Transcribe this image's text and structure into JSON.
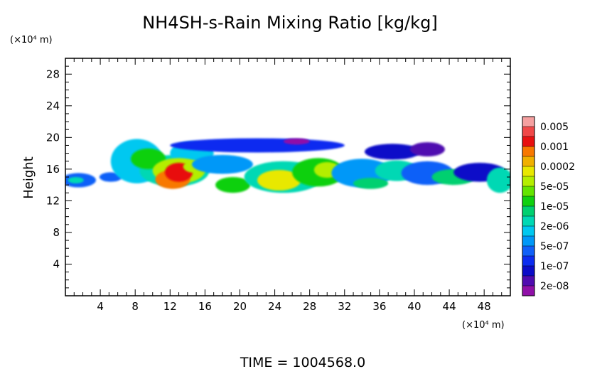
{
  "chart_data": {
    "type": "heatmap",
    "title": "NH4SH-s-Rain Mixing Ratio [kg/kg]",
    "ylabel": "Height",
    "xlabel": "",
    "x_unit": "(×10⁴ m)",
    "y_unit": "(×10⁴ m)",
    "xlim": [
      0,
      51
    ],
    "ylim": [
      0,
      30
    ],
    "x_ticks": [
      4,
      8,
      12,
      16,
      20,
      24,
      28,
      32,
      36,
      40,
      44,
      48
    ],
    "y_ticks": [
      4,
      8,
      12,
      16,
      20,
      24,
      28
    ],
    "colorbar": {
      "labels": [
        "0.005",
        "0.001",
        "0.0002",
        "5e-05",
        "1e-05",
        "2e-06",
        "5e-07",
        "1e-07",
        "2e-08"
      ],
      "colors": [
        "#f5a0a0",
        "#f04848",
        "#e81010",
        "#f87800",
        "#f0b000",
        "#e8e800",
        "#b4ee00",
        "#64e400",
        "#10d010",
        "#00d070",
        "#00d8b4",
        "#00c8f0",
        "#0098f8",
        "#1060f8",
        "#0c2cf0",
        "#0c0cc8",
        "#500cb0",
        "#9010a8"
      ]
    },
    "blobs": [
      {
        "x": 1.5,
        "y": 14.6,
        "w": 2.0,
        "h": 0.9,
        "level": 13
      },
      {
        "x": 1.2,
        "y": 14.6,
        "w": 0.9,
        "h": 0.4,
        "level": 10
      },
      {
        "x": 5.2,
        "y": 15.0,
        "w": 1.3,
        "h": 0.6,
        "level": 13
      },
      {
        "x": 8.2,
        "y": 17.0,
        "w": 3.0,
        "h": 2.8,
        "level": 11
      },
      {
        "x": 12.5,
        "y": 15.8,
        "w": 4.0,
        "h": 2.0,
        "level": 10
      },
      {
        "x": 14.5,
        "y": 18.0,
        "w": 2.5,
        "h": 1.5,
        "level": 11
      },
      {
        "x": 9.5,
        "y": 17.3,
        "w": 2.0,
        "h": 1.3,
        "level": 8
      },
      {
        "x": 13.0,
        "y": 15.8,
        "w": 3.0,
        "h": 1.6,
        "level": 6
      },
      {
        "x": 12.3,
        "y": 14.7,
        "w": 2.0,
        "h": 1.2,
        "level": 3
      },
      {
        "x": 13.0,
        "y": 15.6,
        "w": 1.6,
        "h": 1.2,
        "level": 2
      },
      {
        "x": 15.0,
        "y": 16.3,
        "w": 1.5,
        "h": 0.8,
        "level": 6
      },
      {
        "x": 22.0,
        "y": 19.0,
        "w": 10.0,
        "h": 0.9,
        "level": 14
      },
      {
        "x": 18.0,
        "y": 16.6,
        "w": 3.5,
        "h": 1.2,
        "level": 12
      },
      {
        "x": 19.2,
        "y": 14.0,
        "w": 2.0,
        "h": 1.0,
        "level": 8
      },
      {
        "x": 25.0,
        "y": 15.0,
        "w": 4.5,
        "h": 2.0,
        "level": 10
      },
      {
        "x": 24.5,
        "y": 14.6,
        "w": 2.5,
        "h": 1.3,
        "level": 5
      },
      {
        "x": 29.0,
        "y": 15.6,
        "w": 3.0,
        "h": 1.8,
        "level": 8
      },
      {
        "x": 30.0,
        "y": 15.9,
        "w": 1.5,
        "h": 1.0,
        "level": 6
      },
      {
        "x": 34.0,
        "y": 15.5,
        "w": 3.5,
        "h": 1.8,
        "level": 12
      },
      {
        "x": 37.5,
        "y": 18.2,
        "w": 3.2,
        "h": 1.0,
        "level": 15
      },
      {
        "x": 41.5,
        "y": 18.5,
        "w": 2.0,
        "h": 0.9,
        "level": 16
      },
      {
        "x": 38.0,
        "y": 15.8,
        "w": 2.5,
        "h": 1.3,
        "level": 10
      },
      {
        "x": 41.5,
        "y": 15.5,
        "w": 3.0,
        "h": 1.5,
        "level": 13
      },
      {
        "x": 44.5,
        "y": 15.0,
        "w": 2.5,
        "h": 1.0,
        "level": 9
      },
      {
        "x": 47.5,
        "y": 15.6,
        "w": 3.0,
        "h": 1.2,
        "level": 15
      },
      {
        "x": 49.8,
        "y": 14.6,
        "w": 1.5,
        "h": 1.6,
        "level": 10
      },
      {
        "x": 35.0,
        "y": 14.2,
        "w": 2.0,
        "h": 0.7,
        "level": 9
      },
      {
        "x": 26.5,
        "y": 19.5,
        "w": 1.5,
        "h": 0.4,
        "level": 17
      }
    ],
    "time_label": "TIME = 1004568.0"
  }
}
